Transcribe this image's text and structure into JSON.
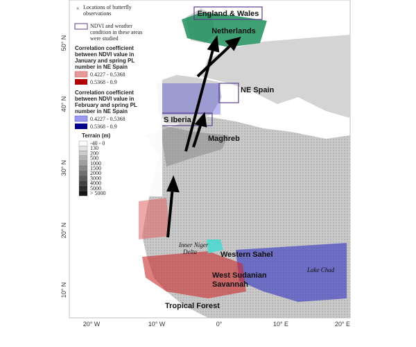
{
  "legend": {
    "observations": [
      "Locations of butterfly",
      "observations"
    ],
    "studied": [
      "NDVI and weather",
      "condition in these areas",
      "were studied"
    ],
    "january_title": [
      "Correlation coefficient",
      "between NDVI value in",
      "January and spring PL",
      "number in NE Spain"
    ],
    "january_classes": [
      "0.4227 - 0.5368",
      "0.5368 - 0.9"
    ],
    "february_title": [
      "Correlation coefficient",
      "between NDVI value in",
      "February and spring PL",
      "number in NE Spain"
    ],
    "february_classes": [
      "0.4227 - 0.5368",
      "0.5368 - 0.9"
    ],
    "terrain_title": "Terrain (m)",
    "terrain_classes": [
      "-40 - 0",
      "130",
      "200",
      "500",
      "1000",
      "1500",
      "2000",
      "3000",
      "4000",
      "5000",
      "> 5000"
    ]
  },
  "regions": [
    "England & Wales",
    "Netherlands",
    "NE Spain",
    "S Iberia",
    "Maghreb",
    "Western Sahel",
    "West Sudanian",
    "Savannah",
    "Tropical Forest"
  ],
  "italic_regions": [
    "Inner Niger",
    "Delta",
    "Lake Chad"
  ],
  "latitudes": [
    "50° N",
    "40° N",
    "30° N",
    "20° N",
    "10° N"
  ],
  "longitudes": [
    "20° W",
    "10° W",
    "0°",
    "10° E",
    "20° E"
  ]
}
